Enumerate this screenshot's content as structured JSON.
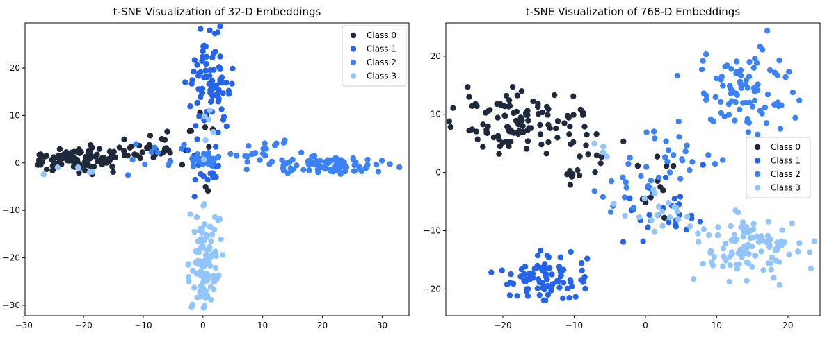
{
  "colors": {
    "class_0": "#1e293b",
    "class_1": "#2563eb",
    "class_2": "#3b82f6",
    "class_3": "#93c5fd"
  },
  "chart_data": [
    {
      "type": "scatter",
      "title": "t-SNE Visualization of 32-D Embeddings",
      "xlabel": "",
      "ylabel": "",
      "xlim": [
        -29.8,
        34.5
      ],
      "ylim": [
        -32.2,
        29.5
      ],
      "xticks": [
        -30,
        -20,
        -10,
        0,
        10,
        20,
        30
      ],
      "yticks": [
        -30,
        -20,
        -10,
        0,
        10,
        20
      ],
      "grid": false,
      "legend": "top-right",
      "series": [
        {
          "name": "Class 0",
          "color": "#1e293b",
          "clusters": [
            {
              "cx": -21,
              "cy": 0.8,
              "sx": 4.5,
              "sy": 1.2,
              "n": 110
            },
            {
              "cx": -10,
              "cy": 2.5,
              "sx": 2.0,
              "sy": 1.6,
              "n": 20
            },
            {
              "cx": -5,
              "cy": 2.5,
              "sx": 1.8,
              "sy": 1.5,
              "n": 12
            },
            {
              "cx": 0,
              "cy": 5,
              "sx": 1.5,
              "sy": 4,
              "n": 10
            }
          ]
        },
        {
          "name": "Class 1",
          "color": "#2563eb",
          "clusters": [
            {
              "cx": 1,
              "cy": 17,
              "sx": 1.8,
              "sy": 5,
              "n": 90
            },
            {
              "cx": 0.5,
              "cy": -3,
              "sx": 1.5,
              "sy": 2,
              "n": 15
            }
          ]
        },
        {
          "name": "Class 2",
          "color": "#3b82f6",
          "clusters": [
            {
              "cx": 22,
              "cy": -0.5,
              "sx": 5,
              "sy": 0.9,
              "n": 80
            },
            {
              "cx": 10,
              "cy": 2,
              "sx": 3,
              "sy": 1.3,
              "n": 25
            },
            {
              "cx": 0.5,
              "cy": 0.5,
              "sx": 0.9,
              "sy": 0.9,
              "n": 30
            },
            {
              "cx": -7,
              "cy": 2,
              "sx": 3,
              "sy": 2,
              "n": 12
            }
          ]
        },
        {
          "name": "Class 3",
          "color": "#93c5fd",
          "clusters": [
            {
              "cx": 0.2,
              "cy": -21,
              "sx": 1.2,
              "sy": 5.5,
              "n": 110
            },
            {
              "cx": -20,
              "cy": -1.5,
              "sx": 4,
              "sy": 0.7,
              "n": 6
            },
            {
              "cx": 1,
              "cy": 8,
              "sx": 1,
              "sy": 3,
              "n": 6
            }
          ]
        }
      ]
    },
    {
      "type": "scatter",
      "title": "t-SNE Visualization of 768-D Embeddings",
      "xlabel": "",
      "ylabel": "",
      "xlim": [
        -28.0,
        24.5
      ],
      "ylim": [
        -24.6,
        25.7
      ],
      "xticks": [
        -20,
        -10,
        0,
        10,
        20
      ],
      "yticks": [
        -20,
        -10,
        0,
        10,
        20
      ],
      "grid": false,
      "legend": "center-right",
      "series": [
        {
          "name": "Class 0",
          "color": "#1e293b",
          "clusters": [
            {
              "cx": -18,
              "cy": 9,
              "sx": 4,
              "sy": 2.5,
              "n": 110
            },
            {
              "cx": -8,
              "cy": 2,
              "sx": 2,
              "sy": 2.5,
              "n": 20
            },
            {
              "cx": 1,
              "cy": -3,
              "sx": 2,
              "sy": 3,
              "n": 12
            }
          ]
        },
        {
          "name": "Class 1",
          "color": "#2563eb",
          "clusters": [
            {
              "cx": -14,
              "cy": -18,
              "sx": 3,
              "sy": 2.2,
              "n": 90
            },
            {
              "cx": 1,
              "cy": -6,
              "sx": 3.5,
              "sy": 3,
              "n": 30
            }
          ]
        },
        {
          "name": "Class 2",
          "color": "#3b82f6",
          "clusters": [
            {
              "cx": 14,
              "cy": 14,
              "sx": 3.5,
              "sy": 4.5,
              "n": 90
            },
            {
              "cx": 3,
              "cy": 3,
              "sx": 2.5,
              "sy": 2.5,
              "n": 25
            },
            {
              "cx": -4,
              "cy": -4,
              "sx": 2,
              "sy": 2,
              "n": 10
            }
          ]
        },
        {
          "name": "Class 3",
          "color": "#93c5fd",
          "clusters": [
            {
              "cx": 15,
              "cy": -13,
              "sx": 4,
              "sy": 2.5,
              "n": 100
            },
            {
              "cx": 3,
              "cy": -7,
              "sx": 3,
              "sy": 2.5,
              "n": 20
            },
            {
              "cx": -7,
              "cy": 4,
              "sx": 1,
              "sy": 1.5,
              "n": 4
            }
          ]
        }
      ]
    }
  ]
}
